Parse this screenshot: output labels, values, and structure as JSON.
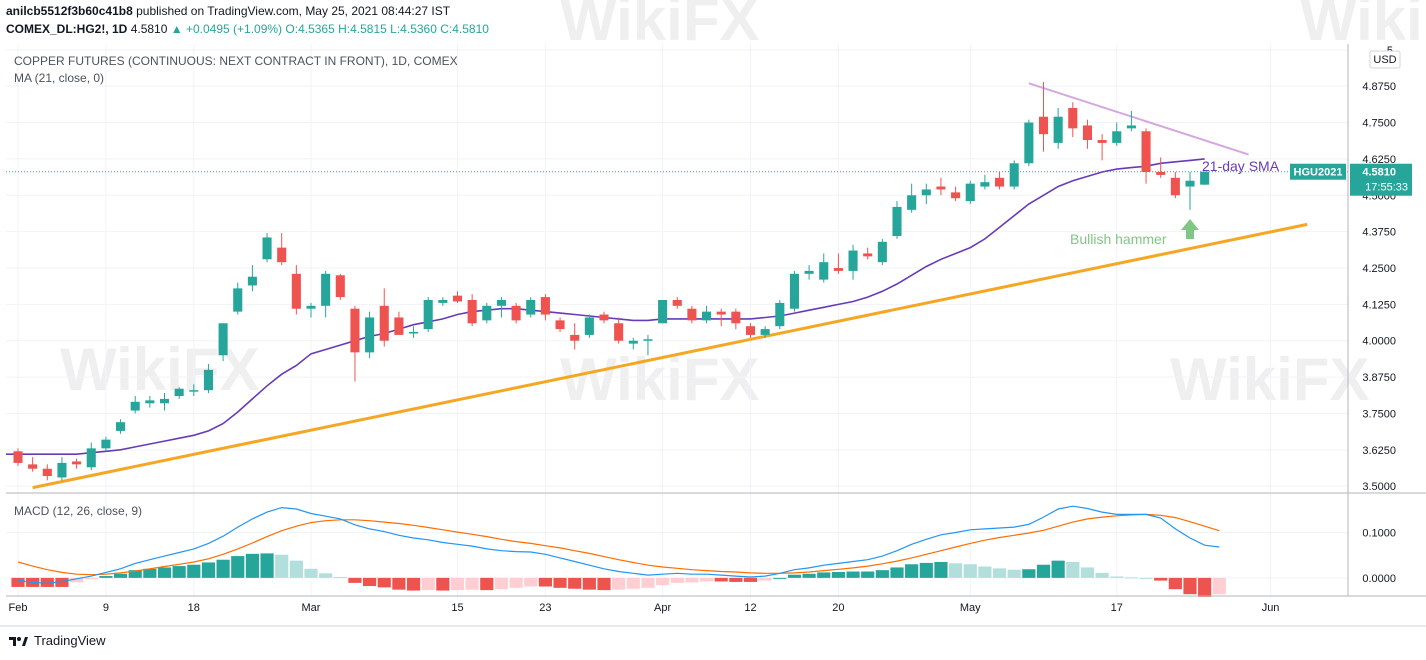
{
  "header": {
    "publisher": "anilcb5512f3b60c41b8",
    "published_text": "published on TradingView.com, May 25, 2021 08:44:27 IST",
    "symbol": "COMEX_DL:HG2!, 1D",
    "last": "4.5810",
    "change": "+0.0495 (+1.09%)",
    "open": "O:4.5365",
    "high": "H:4.5815",
    "low": "L:4.5360",
    "close": "C:4.5810"
  },
  "watermark": "WikiFX",
  "footer": {
    "brand": "TradingView"
  },
  "colors": {
    "up": "#26a69a",
    "down": "#ef5350",
    "sma": "#673ab7",
    "trend": "#f5a623",
    "resistance": "#d5a6e0",
    "macd": "#2196f3",
    "signal": "#ff6d00",
    "arrow": "#81c784"
  },
  "chart_data": [
    {
      "type": "candlestick",
      "title": "COPPER FUTURES (CONTINUOUS: NEXT CONTRACT IN FRONT), 1D, COMEX",
      "indicator_label": "MA (21, close, 0)",
      "currency": "USD",
      "ylim": [
        3.48,
        5.02
      ],
      "y_ticks": [
        "3.5000",
        "3.6250",
        "3.7500",
        "3.8750",
        "4.0000",
        "4.1250",
        "4.2500",
        "4.3750",
        "4.5000",
        "4.6250",
        "4.7500",
        "4.8750",
        "5."
      ],
      "y_tick_values": [
        3.5,
        3.625,
        3.75,
        3.875,
        4.0,
        4.125,
        4.25,
        4.375,
        4.5,
        4.625,
        4.75,
        4.875,
        5.0
      ],
      "x_ticks": [
        {
          "label": "Feb",
          "index": 0
        },
        {
          "label": "9",
          "index": 6
        },
        {
          "label": "18",
          "index": 12
        },
        {
          "label": "Mar",
          "index": 20
        },
        {
          "label": "15",
          "index": 30
        },
        {
          "label": "23",
          "index": 36
        },
        {
          "label": "Apr",
          "index": 44
        },
        {
          "label": "12",
          "index": 50
        },
        {
          "label": "20",
          "index": 56
        },
        {
          "label": "May",
          "index": 65
        },
        {
          "label": "17",
          "index": 75
        },
        {
          "label": "Jun",
          "index": 85.5
        }
      ],
      "candles": [
        {
          "o": 3.62,
          "h": 3.63,
          "l": 3.57,
          "c": 3.58
        },
        {
          "o": 3.575,
          "h": 3.6,
          "l": 3.55,
          "c": 3.56
        },
        {
          "o": 3.56,
          "h": 3.575,
          "l": 3.52,
          "c": 3.535
        },
        {
          "o": 3.53,
          "h": 3.6,
          "l": 3.52,
          "c": 3.58
        },
        {
          "o": 3.585,
          "h": 3.595,
          "l": 3.56,
          "c": 3.575
        },
        {
          "o": 3.565,
          "h": 3.65,
          "l": 3.555,
          "c": 3.63
        },
        {
          "o": 3.63,
          "h": 3.67,
          "l": 3.62,
          "c": 3.66
        },
        {
          "o": 3.69,
          "h": 3.73,
          "l": 3.68,
          "c": 3.72
        },
        {
          "o": 3.76,
          "h": 3.81,
          "l": 3.75,
          "c": 3.79
        },
        {
          "o": 3.785,
          "h": 3.81,
          "l": 3.77,
          "c": 3.795
        },
        {
          "o": 3.785,
          "h": 3.82,
          "l": 3.76,
          "c": 3.8
        },
        {
          "o": 3.81,
          "h": 3.84,
          "l": 3.8,
          "c": 3.835
        },
        {
          "o": 3.83,
          "h": 3.85,
          "l": 3.81,
          "c": 3.83
        },
        {
          "o": 3.83,
          "h": 3.92,
          "l": 3.82,
          "c": 3.9
        },
        {
          "o": 3.95,
          "h": 4.06,
          "l": 3.93,
          "c": 4.06
        },
        {
          "o": 4.1,
          "h": 4.2,
          "l": 4.09,
          "c": 4.18
        },
        {
          "o": 4.19,
          "h": 4.26,
          "l": 4.17,
          "c": 4.22
        },
        {
          "o": 4.28,
          "h": 4.37,
          "l": 4.27,
          "c": 4.355
        },
        {
          "o": 4.32,
          "h": 4.37,
          "l": 4.26,
          "c": 4.27
        },
        {
          "o": 4.23,
          "h": 4.26,
          "l": 4.09,
          "c": 4.11
        },
        {
          "o": 4.11,
          "h": 4.13,
          "l": 4.08,
          "c": 4.12
        },
        {
          "o": 4.12,
          "h": 4.24,
          "l": 4.08,
          "c": 4.23
        },
        {
          "o": 4.225,
          "h": 4.23,
          "l": 4.14,
          "c": 4.15
        },
        {
          "o": 4.11,
          "h": 4.12,
          "l": 3.86,
          "c": 3.96
        },
        {
          "o": 3.96,
          "h": 4.1,
          "l": 3.94,
          "c": 4.08
        },
        {
          "o": 4.12,
          "h": 4.18,
          "l": 3.98,
          "c": 4.0
        },
        {
          "o": 4.08,
          "h": 4.1,
          "l": 4.02,
          "c": 4.02
        },
        {
          "o": 4.03,
          "h": 4.05,
          "l": 4.01,
          "c": 4.03
        },
        {
          "o": 4.04,
          "h": 4.15,
          "l": 4.03,
          "c": 4.14
        },
        {
          "o": 4.13,
          "h": 4.15,
          "l": 4.12,
          "c": 4.14
        },
        {
          "o": 4.155,
          "h": 4.17,
          "l": 4.13,
          "c": 4.135
        },
        {
          "o": 4.14,
          "h": 4.16,
          "l": 4.05,
          "c": 4.06
        },
        {
          "o": 4.07,
          "h": 4.13,
          "l": 4.06,
          "c": 4.12
        },
        {
          "o": 4.12,
          "h": 4.15,
          "l": 4.08,
          "c": 4.14
        },
        {
          "o": 4.12,
          "h": 4.13,
          "l": 4.06,
          "c": 4.07
        },
        {
          "o": 4.09,
          "h": 4.15,
          "l": 4.08,
          "c": 4.14
        },
        {
          "o": 4.15,
          "h": 4.16,
          "l": 4.07,
          "c": 4.09
        },
        {
          "o": 4.07,
          "h": 4.08,
          "l": 4.03,
          "c": 4.04
        },
        {
          "o": 4.02,
          "h": 4.06,
          "l": 3.97,
          "c": 4.0
        },
        {
          "o": 4.02,
          "h": 4.09,
          "l": 4.01,
          "c": 4.08
        },
        {
          "o": 4.09,
          "h": 4.1,
          "l": 4.06,
          "c": 4.07
        },
        {
          "o": 4.06,
          "h": 4.08,
          "l": 3.99,
          "c": 4.0
        },
        {
          "o": 3.99,
          "h": 4.01,
          "l": 3.97,
          "c": 4.0
        },
        {
          "o": 4.0,
          "h": 4.02,
          "l": 3.95,
          "c": 4.005
        },
        {
          "o": 4.06,
          "h": 4.14,
          "l": 4.06,
          "c": 4.14
        },
        {
          "o": 4.14,
          "h": 4.15,
          "l": 4.11,
          "c": 4.12
        },
        {
          "o": 4.11,
          "h": 4.12,
          "l": 4.06,
          "c": 4.07
        },
        {
          "o": 4.07,
          "h": 4.12,
          "l": 4.06,
          "c": 4.1
        },
        {
          "o": 4.1,
          "h": 4.11,
          "l": 4.05,
          "c": 4.09
        },
        {
          "o": 4.1,
          "h": 4.11,
          "l": 4.04,
          "c": 4.06
        },
        {
          "o": 4.05,
          "h": 4.06,
          "l": 4.01,
          "c": 4.02
        },
        {
          "o": 4.02,
          "h": 4.05,
          "l": 4.01,
          "c": 4.04
        },
        {
          "o": 4.05,
          "h": 4.14,
          "l": 4.04,
          "c": 4.13
        },
        {
          "o": 4.11,
          "h": 4.24,
          "l": 4.1,
          "c": 4.23
        },
        {
          "o": 4.23,
          "h": 4.26,
          "l": 4.21,
          "c": 4.24
        },
        {
          "o": 4.21,
          "h": 4.3,
          "l": 4.2,
          "c": 4.27
        },
        {
          "o": 4.25,
          "h": 4.3,
          "l": 4.23,
          "c": 4.24
        },
        {
          "o": 4.24,
          "h": 4.33,
          "l": 4.21,
          "c": 4.31
        },
        {
          "o": 4.3,
          "h": 4.32,
          "l": 4.28,
          "c": 4.29
        },
        {
          "o": 4.27,
          "h": 4.35,
          "l": 4.26,
          "c": 4.34
        },
        {
          "o": 4.36,
          "h": 4.48,
          "l": 4.35,
          "c": 4.46
        },
        {
          "o": 4.45,
          "h": 4.54,
          "l": 4.44,
          "c": 4.5
        },
        {
          "o": 4.5,
          "h": 4.54,
          "l": 4.47,
          "c": 4.52
        },
        {
          "o": 4.53,
          "h": 4.56,
          "l": 4.5,
          "c": 4.52
        },
        {
          "o": 4.51,
          "h": 4.53,
          "l": 4.48,
          "c": 4.49
        },
        {
          "o": 4.48,
          "h": 4.55,
          "l": 4.47,
          "c": 4.54
        },
        {
          "o": 4.53,
          "h": 4.57,
          "l": 4.52,
          "c": 4.545
        },
        {
          "o": 4.56,
          "h": 4.58,
          "l": 4.52,
          "c": 4.53
        },
        {
          "o": 4.53,
          "h": 4.62,
          "l": 4.52,
          "c": 4.61
        },
        {
          "o": 4.61,
          "h": 4.76,
          "l": 4.6,
          "c": 4.75
        },
        {
          "o": 4.77,
          "h": 4.89,
          "l": 4.65,
          "c": 4.71
        },
        {
          "o": 4.68,
          "h": 4.8,
          "l": 4.66,
          "c": 4.77
        },
        {
          "o": 4.8,
          "h": 4.82,
          "l": 4.7,
          "c": 4.73
        },
        {
          "o": 4.74,
          "h": 4.76,
          "l": 4.66,
          "c": 4.69
        },
        {
          "o": 4.69,
          "h": 4.71,
          "l": 4.62,
          "c": 4.68
        },
        {
          "o": 4.68,
          "h": 4.75,
          "l": 4.67,
          "c": 4.72
        },
        {
          "o": 4.73,
          "h": 4.79,
          "l": 4.72,
          "c": 4.74
        },
        {
          "o": 4.72,
          "h": 4.73,
          "l": 4.54,
          "c": 4.58
        },
        {
          "o": 4.58,
          "h": 4.63,
          "l": 4.56,
          "c": 4.57
        },
        {
          "o": 4.56,
          "h": 4.58,
          "l": 4.49,
          "c": 4.5
        },
        {
          "o": 4.53,
          "h": 4.58,
          "l": 4.45,
          "c": 4.55
        },
        {
          "o": 4.5365,
          "h": 4.5815,
          "l": 4.536,
          "c": 4.581
        }
      ],
      "sma21": [
        3.61,
        3.61,
        3.61,
        3.61,
        3.61,
        3.615,
        3.62,
        3.625,
        3.635,
        3.645,
        3.655,
        3.665,
        3.675,
        3.69,
        3.715,
        3.755,
        3.8,
        3.845,
        3.885,
        3.915,
        3.955,
        3.97,
        3.985,
        4.0,
        4.015,
        4.025,
        4.04,
        4.055,
        4.065,
        4.075,
        4.09,
        4.1,
        4.105,
        4.11,
        4.11,
        4.105,
        4.1,
        4.095,
        4.09,
        4.085,
        4.08,
        4.075,
        4.07,
        4.07,
        4.075,
        4.075,
        4.075,
        4.075,
        4.075,
        4.075,
        4.075,
        4.08,
        4.085,
        4.095,
        4.105,
        4.115,
        4.125,
        4.135,
        4.15,
        4.17,
        4.195,
        4.225,
        4.255,
        4.28,
        4.3,
        4.32,
        4.35,
        4.39,
        4.43,
        4.47,
        4.5,
        4.53,
        4.55,
        4.565,
        4.58,
        4.59,
        4.595,
        4.6,
        4.61,
        4.615,
        4.62,
        4.625
      ],
      "trendline": {
        "from": {
          "index": 1,
          "value": 3.495
        },
        "to": {
          "index": 88,
          "value": 4.4
        }
      },
      "resistance": {
        "from": {
          "index": 69,
          "value": 4.885
        },
        "to": {
          "index": 84,
          "value": 4.64
        }
      },
      "annotations": [
        "21-day SMA",
        "Bullish hammer"
      ],
      "price_label": "HGU2021",
      "price_value": "4.5810",
      "countdown": "17:55:33"
    },
    {
      "type": "line",
      "title": "MACD (12, 26, close, 9)",
      "ylim": [
        -0.04,
        0.185
      ],
      "y_ticks": [
        "0.1000",
        "0.0000"
      ],
      "y_tick_values": [
        0.1,
        0.0
      ],
      "macd": [
        -0.005,
        -0.01,
        -0.012,
        -0.008,
        -0.002,
        0.004,
        0.012,
        0.02,
        0.032,
        0.04,
        0.048,
        0.056,
        0.064,
        0.076,
        0.092,
        0.112,
        0.13,
        0.145,
        0.155,
        0.152,
        0.142,
        0.136,
        0.13,
        0.117,
        0.108,
        0.102,
        0.094,
        0.088,
        0.084,
        0.078,
        0.074,
        0.07,
        0.064,
        0.06,
        0.058,
        0.057,
        0.052,
        0.044,
        0.036,
        0.028,
        0.02,
        0.014,
        0.01,
        0.006,
        0.008,
        0.01,
        0.008,
        0.008,
        0.006,
        0.004,
        0.002,
        0.004,
        0.01,
        0.018,
        0.022,
        0.028,
        0.032,
        0.036,
        0.04,
        0.048,
        0.06,
        0.074,
        0.085,
        0.095,
        0.1,
        0.106,
        0.108,
        0.11,
        0.112,
        0.118,
        0.134,
        0.152,
        0.158,
        0.153,
        0.145,
        0.14,
        0.14,
        0.14,
        0.132,
        0.108,
        0.088,
        0.072,
        0.068
      ],
      "signal": [
        0.035,
        0.026,
        0.018,
        0.012,
        0.008,
        0.007,
        0.008,
        0.011,
        0.015,
        0.02,
        0.025,
        0.03,
        0.035,
        0.042,
        0.052,
        0.064,
        0.077,
        0.091,
        0.104,
        0.114,
        0.122,
        0.126,
        0.128,
        0.128,
        0.126,
        0.123,
        0.12,
        0.116,
        0.111,
        0.106,
        0.101,
        0.096,
        0.091,
        0.085,
        0.08,
        0.076,
        0.071,
        0.066,
        0.06,
        0.054,
        0.047,
        0.04,
        0.034,
        0.028,
        0.024,
        0.021,
        0.018,
        0.016,
        0.014,
        0.013,
        0.011,
        0.01,
        0.01,
        0.011,
        0.013,
        0.016,
        0.019,
        0.022,
        0.026,
        0.031,
        0.037,
        0.044,
        0.052,
        0.06,
        0.068,
        0.076,
        0.083,
        0.089,
        0.094,
        0.099,
        0.105,
        0.114,
        0.123,
        0.13,
        0.134,
        0.137,
        0.139,
        0.14,
        0.138,
        0.133,
        0.124,
        0.114,
        0.104
      ],
      "histogram": [
        -0.02,
        -0.02,
        -0.02,
        -0.02,
        -0.01,
        -0.003,
        0.004,
        0.009,
        0.017,
        0.02,
        0.023,
        0.026,
        0.029,
        0.034,
        0.04,
        0.048,
        0.053,
        0.054,
        0.051,
        0.038,
        0.02,
        0.01,
        0.002,
        -0.011,
        -0.018,
        -0.021,
        -0.026,
        -0.028,
        -0.027,
        -0.028,
        -0.027,
        -0.026,
        -0.027,
        -0.025,
        -0.022,
        -0.019,
        -0.019,
        -0.022,
        -0.024,
        -0.026,
        -0.027,
        -0.026,
        -0.024,
        -0.022,
        -0.016,
        -0.011,
        -0.01,
        -0.008,
        -0.008,
        -0.009,
        -0.009,
        -0.006,
        0.0,
        0.007,
        0.009,
        0.012,
        0.013,
        0.014,
        0.014,
        0.017,
        0.023,
        0.03,
        0.033,
        0.035,
        0.032,
        0.03,
        0.025,
        0.021,
        0.018,
        0.019,
        0.029,
        0.038,
        0.035,
        0.023,
        0.011,
        0.003,
        0.001,
        0.0,
        -0.006,
        -0.025,
        -0.036,
        -0.042,
        -0.036
      ]
    }
  ]
}
